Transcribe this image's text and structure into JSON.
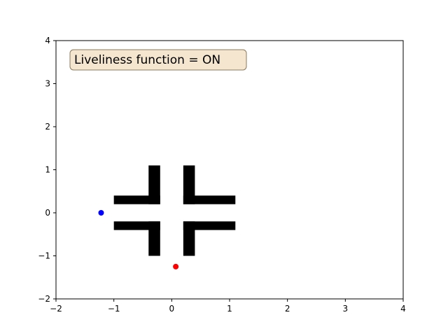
{
  "chart_data": {
    "type": "scatter",
    "xlim": [
      -2,
      4
    ],
    "ylim": [
      -2,
      4
    ],
    "x_ticks": [
      -2,
      -1,
      0,
      1,
      2,
      3,
      4
    ],
    "y_ticks": [
      -2,
      -1,
      0,
      1,
      2,
      3,
      4
    ],
    "x_tick_labels": [
      "−2",
      "−1",
      "0",
      "1",
      "2",
      "3",
      "4"
    ],
    "y_tick_labels": [
      "−2",
      "−1",
      "0",
      "1",
      "2",
      "3",
      "4"
    ],
    "grid": false,
    "annotation": "Liveliness function = ON",
    "annotation_box_color": "#f5e6cf",
    "obstacles": [
      {
        "name": "vertical-bar-upper-left",
        "x": [
          -0.4,
          -0.2
        ],
        "y": [
          0.2,
          1.1
        ]
      },
      {
        "name": "vertical-bar-upper-right",
        "x": [
          0.2,
          0.4
        ],
        "y": [
          0.2,
          1.1
        ]
      },
      {
        "name": "vertical-bar-lower-left",
        "x": [
          -0.4,
          -0.2
        ],
        "y": [
          -1.0,
          -0.2
        ]
      },
      {
        "name": "vertical-bar-lower-right",
        "x": [
          0.2,
          0.4
        ],
        "y": [
          -1.0,
          -0.2
        ]
      },
      {
        "name": "horizontal-bar-upper-left",
        "x": [
          -1.0,
          -0.2
        ],
        "y": [
          0.2,
          0.4
        ]
      },
      {
        "name": "horizontal-bar-upper-right",
        "x": [
          0.2,
          1.1
        ],
        "y": [
          0.2,
          0.4
        ]
      },
      {
        "name": "horizontal-bar-lower-left",
        "x": [
          -1.0,
          -0.2
        ],
        "y": [
          -0.4,
          -0.2
        ]
      },
      {
        "name": "horizontal-bar-lower-right",
        "x": [
          0.2,
          1.1
        ],
        "y": [
          -0.4,
          -0.2
        ]
      }
    ],
    "points": [
      {
        "name": "blue-agent",
        "x": -1.22,
        "y": 0.0,
        "color": "#0000ff"
      },
      {
        "name": "red-agent",
        "x": 0.07,
        "y": -1.25,
        "color": "#ff0000"
      }
    ]
  }
}
